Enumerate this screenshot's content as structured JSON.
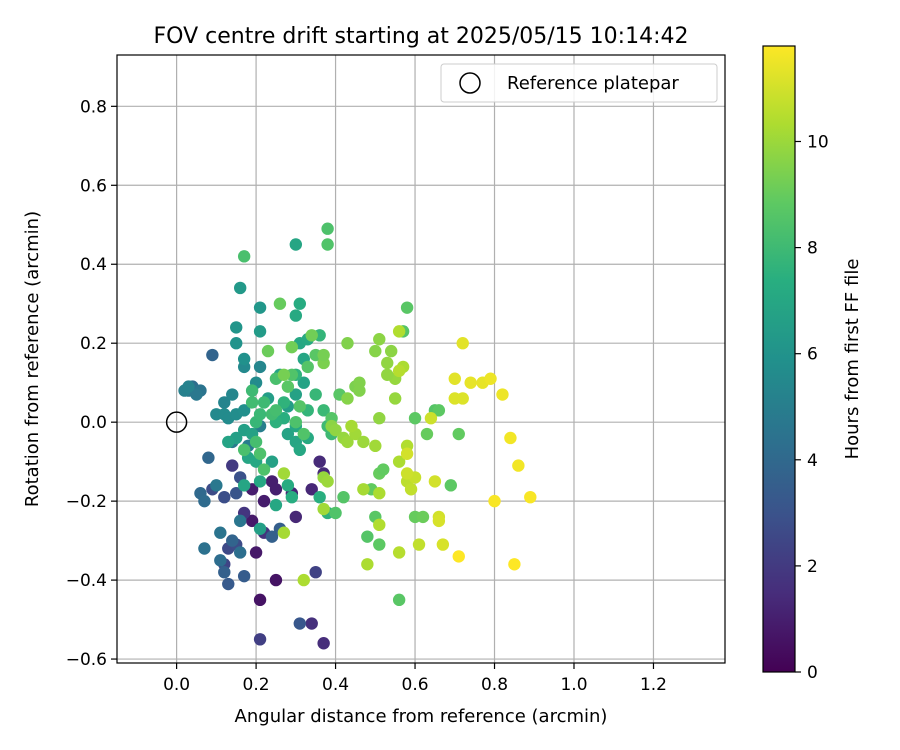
{
  "chart_data": {
    "type": "scatter",
    "title": "FOV centre drift starting at 2025/05/15 10:14:42",
    "xlabel": "Angular distance from reference (arcmin)",
    "ylabel": "Rotation from reference (arcmin)",
    "xlim": [
      -0.15,
      1.38
    ],
    "ylim": [
      -0.61,
      0.93
    ],
    "xticks": [
      0.0,
      0.2,
      0.4,
      0.6,
      0.8,
      1.0,
      1.2
    ],
    "xtick_labels": [
      "0.0",
      "0.2",
      "0.4",
      "0.6",
      "0.8",
      "1.0",
      "1.2"
    ],
    "yticks": [
      -0.6,
      -0.4,
      -0.2,
      0.0,
      0.2,
      0.4,
      0.6,
      0.8
    ],
    "ytick_labels": [
      "−0.6",
      "−0.4",
      "−0.2",
      "0.0",
      "0.2",
      "0.4",
      "0.6",
      "0.8"
    ],
    "grid": true,
    "legend": {
      "position": "top-right",
      "label": "Reference platepar"
    },
    "reference_point": {
      "x": 0.0,
      "y": 0.0
    },
    "colorbar": {
      "label": "Hours from first FF file",
      "min": 0,
      "max": 11.8,
      "ticks": [
        0,
        2,
        4,
        6,
        8,
        10
      ],
      "tick_labels": [
        "0",
        "2",
        "4",
        "6",
        "8",
        "10"
      ],
      "colormap": "viridis"
    },
    "points": [
      {
        "x": 0.21,
        "y": -0.45,
        "h": 0.6
      },
      {
        "x": 0.25,
        "y": -0.4,
        "h": 0.6
      },
      {
        "x": 0.2,
        "y": -0.33,
        "h": 0.8
      },
      {
        "x": 0.19,
        "y": -0.25,
        "h": 0.8
      },
      {
        "x": 0.22,
        "y": -0.2,
        "h": 0.9
      },
      {
        "x": 0.19,
        "y": -0.17,
        "h": 0.9
      },
      {
        "x": 0.24,
        "y": -0.15,
        "h": 1.0
      },
      {
        "x": 0.25,
        "y": -0.17,
        "h": 1.0
      },
      {
        "x": 0.29,
        "y": -0.18,
        "h": 1.2
      },
      {
        "x": 0.34,
        "y": -0.17,
        "h": 1.3
      },
      {
        "x": 0.3,
        "y": -0.24,
        "h": 1.3
      },
      {
        "x": 0.36,
        "y": -0.1,
        "h": 1.4
      },
      {
        "x": 0.37,
        "y": -0.13,
        "h": 1.4
      },
      {
        "x": 0.37,
        "y": -0.56,
        "h": 1.5
      },
      {
        "x": 0.34,
        "y": -0.51,
        "h": 1.6
      },
      {
        "x": 0.22,
        "y": -0.28,
        "h": 1.7
      },
      {
        "x": 0.17,
        "y": -0.23,
        "h": 1.8
      },
      {
        "x": 0.14,
        "y": -0.11,
        "h": 2.0
      },
      {
        "x": 0.21,
        "y": -0.55,
        "h": 2.2
      },
      {
        "x": 0.35,
        "y": -0.38,
        "h": 2.3
      },
      {
        "x": 0.12,
        "y": -0.36,
        "h": 2.4
      },
      {
        "x": 0.13,
        "y": -0.32,
        "h": 2.6
      },
      {
        "x": 0.15,
        "y": -0.31,
        "h": 2.7
      },
      {
        "x": 0.09,
        "y": -0.17,
        "h": 2.7
      },
      {
        "x": 0.12,
        "y": -0.19,
        "h": 2.8
      },
      {
        "x": 0.16,
        "y": -0.14,
        "h": 2.9
      },
      {
        "x": 0.15,
        "y": -0.18,
        "h": 3.1
      },
      {
        "x": 0.31,
        "y": -0.51,
        "h": 3.2
      },
      {
        "x": 0.13,
        "y": -0.41,
        "h": 3.3
      },
      {
        "x": 0.17,
        "y": -0.39,
        "h": 3.4
      },
      {
        "x": 0.26,
        "y": -0.27,
        "h": 3.5
      },
      {
        "x": 0.24,
        "y": -0.29,
        "h": 3.6
      },
      {
        "x": 0.12,
        "y": -0.38,
        "h": 3.6
      },
      {
        "x": 0.14,
        "y": -0.3,
        "h": 3.8
      },
      {
        "x": 0.09,
        "y": 0.17,
        "h": 3.8
      },
      {
        "x": 0.08,
        "y": -0.09,
        "h": 3.9
      },
      {
        "x": 0.06,
        "y": -0.18,
        "h": 4.0
      },
      {
        "x": 0.07,
        "y": -0.2,
        "h": 4.1
      },
      {
        "x": 0.11,
        "y": -0.35,
        "h": 4.2
      },
      {
        "x": 0.16,
        "y": -0.33,
        "h": 4.3
      },
      {
        "x": 0.07,
        "y": -0.32,
        "h": 4.4
      },
      {
        "x": 0.11,
        "y": -0.28,
        "h": 4.5
      },
      {
        "x": 0.16,
        "y": -0.25,
        "h": 4.6
      },
      {
        "x": 0.1,
        "y": -0.16,
        "h": 4.7
      },
      {
        "x": 0.14,
        "y": -0.05,
        "h": 4.8
      },
      {
        "x": 0.18,
        "y": -0.06,
        "h": 4.9
      },
      {
        "x": 0.21,
        "y": -0.01,
        "h": 5.0
      },
      {
        "x": 0.04,
        "y": 0.09,
        "h": 4.2
      },
      {
        "x": 0.03,
        "y": 0.08,
        "h": 4.6
      },
      {
        "x": 0.06,
        "y": 0.08,
        "h": 4.5
      },
      {
        "x": 0.05,
        "y": 0.07,
        "h": 4.7
      },
      {
        "x": 0.02,
        "y": 0.08,
        "h": 5.1
      },
      {
        "x": 0.03,
        "y": 0.09,
        "h": 5.2
      },
      {
        "x": 0.12,
        "y": 0.05,
        "h": 5.3
      },
      {
        "x": 0.14,
        "y": 0.07,
        "h": 5.4
      },
      {
        "x": 0.1,
        "y": 0.02,
        "h": 5.5
      },
      {
        "x": 0.12,
        "y": 0.02,
        "h": 5.6
      },
      {
        "x": 0.13,
        "y": 0.01,
        "h": 5.6
      },
      {
        "x": 0.15,
        "y": 0.02,
        "h": 5.7
      },
      {
        "x": 0.17,
        "y": 0.03,
        "h": 5.8
      },
      {
        "x": 0.17,
        "y": 0.14,
        "h": 5.5
      },
      {
        "x": 0.2,
        "y": 0.1,
        "h": 5.6
      },
      {
        "x": 0.21,
        "y": 0.14,
        "h": 5.4
      },
      {
        "x": 0.17,
        "y": 0.16,
        "h": 5.9
      },
      {
        "x": 0.15,
        "y": 0.2,
        "h": 6.0
      },
      {
        "x": 0.15,
        "y": 0.24,
        "h": 6.1
      },
      {
        "x": 0.16,
        "y": 0.34,
        "h": 6.3
      },
      {
        "x": 0.21,
        "y": 0.29,
        "h": 6.2
      },
      {
        "x": 0.21,
        "y": 0.23,
        "h": 6.4
      },
      {
        "x": 0.23,
        "y": 0.06,
        "h": 6.5
      },
      {
        "x": 0.17,
        "y": -0.02,
        "h": 6.6
      },
      {
        "x": 0.19,
        "y": -0.03,
        "h": 6.7
      },
      {
        "x": 0.15,
        "y": -0.04,
        "h": 6.6
      },
      {
        "x": 0.13,
        "y": -0.05,
        "h": 6.8
      },
      {
        "x": 0.18,
        "y": -0.09,
        "h": 6.9
      },
      {
        "x": 0.2,
        "y": -0.1,
        "h": 7.0
      },
      {
        "x": 0.17,
        "y": -0.16,
        "h": 6.9
      },
      {
        "x": 0.21,
        "y": -0.15,
        "h": 7.0
      },
      {
        "x": 0.21,
        "y": -0.27,
        "h": 6.6
      },
      {
        "x": 0.25,
        "y": -0.21,
        "h": 7.0
      },
      {
        "x": 0.24,
        "y": -0.1,
        "h": 6.7
      },
      {
        "x": 0.26,
        "y": 0.12,
        "h": 6.8
      },
      {
        "x": 0.28,
        "y": 0.04,
        "h": 6.5
      },
      {
        "x": 0.3,
        "y": 0.07,
        "h": 6.7
      },
      {
        "x": 0.32,
        "y": 0.1,
        "h": 6.8
      },
      {
        "x": 0.32,
        "y": 0.16,
        "h": 6.9
      },
      {
        "x": 0.31,
        "y": 0.2,
        "h": 7.0
      },
      {
        "x": 0.33,
        "y": 0.21,
        "h": 7.1
      },
      {
        "x": 0.3,
        "y": 0.27,
        "h": 7.1
      },
      {
        "x": 0.31,
        "y": 0.3,
        "h": 7.2
      },
      {
        "x": 0.3,
        "y": 0.45,
        "h": 6.9
      },
      {
        "x": 0.28,
        "y": -0.03,
        "h": 6.8
      },
      {
        "x": 0.3,
        "y": -0.05,
        "h": 6.9
      },
      {
        "x": 0.3,
        "y": -0.01,
        "h": 7.0
      },
      {
        "x": 0.33,
        "y": -0.04,
        "h": 7.1
      },
      {
        "x": 0.31,
        "y": -0.07,
        "h": 7.0
      },
      {
        "x": 0.28,
        "y": -0.16,
        "h": 7.2
      },
      {
        "x": 0.29,
        "y": -0.19,
        "h": 7.3
      },
      {
        "x": 0.36,
        "y": -0.19,
        "h": 7.4
      },
      {
        "x": 0.38,
        "y": -0.23,
        "h": 7.5
      },
      {
        "x": 0.27,
        "y": 0.01,
        "h": 7.4
      },
      {
        "x": 0.25,
        "y": 0.0,
        "h": 7.5
      },
      {
        "x": 0.27,
        "y": 0.05,
        "h": 7.6
      },
      {
        "x": 0.3,
        "y": 0.12,
        "h": 7.6
      },
      {
        "x": 0.33,
        "y": 0.03,
        "h": 7.7
      },
      {
        "x": 0.35,
        "y": 0.07,
        "h": 7.8
      },
      {
        "x": 0.36,
        "y": 0.22,
        "h": 7.7
      },
      {
        "x": 0.37,
        "y": 0.03,
        "h": 7.9
      },
      {
        "x": 0.38,
        "y": -0.01,
        "h": 8.0
      },
      {
        "x": 0.39,
        "y": -0.03,
        "h": 8.0
      },
      {
        "x": 0.2,
        "y": 0.0,
        "h": 7.8
      },
      {
        "x": 0.21,
        "y": 0.02,
        "h": 7.9
      },
      {
        "x": 0.22,
        "y": 0.05,
        "h": 8.0
      },
      {
        "x": 0.24,
        "y": 0.02,
        "h": 8.1
      },
      {
        "x": 0.25,
        "y": 0.03,
        "h": 8.2
      },
      {
        "x": 0.19,
        "y": 0.08,
        "h": 8.0
      },
      {
        "x": 0.19,
        "y": 0.05,
        "h": 8.1
      },
      {
        "x": 0.2,
        "y": -0.05,
        "h": 8.2
      },
      {
        "x": 0.17,
        "y": -0.07,
        "h": 8.3
      },
      {
        "x": 0.21,
        "y": -0.08,
        "h": 8.4
      },
      {
        "x": 0.22,
        "y": -0.12,
        "h": 8.4
      },
      {
        "x": 0.25,
        "y": 0.11,
        "h": 8.3
      },
      {
        "x": 0.29,
        "y": 0.12,
        "h": 8.5
      },
      {
        "x": 0.3,
        "y": 0.0,
        "h": 8.4
      },
      {
        "x": 0.31,
        "y": 0.04,
        "h": 8.6
      },
      {
        "x": 0.28,
        "y": 0.09,
        "h": 8.7
      },
      {
        "x": 0.32,
        "y": -0.03,
        "h": 8.5
      },
      {
        "x": 0.33,
        "y": 0.14,
        "h": 8.6
      },
      {
        "x": 0.17,
        "y": 0.42,
        "h": 8.3
      },
      {
        "x": 0.38,
        "y": 0.49,
        "h": 8.4
      },
      {
        "x": 0.38,
        "y": 0.45,
        "h": 8.5
      },
      {
        "x": 0.35,
        "y": 0.17,
        "h": 8.7
      },
      {
        "x": 0.39,
        "y": 0.01,
        "h": 8.6
      },
      {
        "x": 0.41,
        "y": 0.07,
        "h": 8.7
      },
      {
        "x": 0.4,
        "y": -0.23,
        "h": 8.5
      },
      {
        "x": 0.42,
        "y": -0.19,
        "h": 8.6
      },
      {
        "x": 0.48,
        "y": -0.29,
        "h": 8.6
      },
      {
        "x": 0.5,
        "y": -0.24,
        "h": 8.7
      },
      {
        "x": 0.51,
        "y": -0.31,
        "h": 8.8
      },
      {
        "x": 0.49,
        "y": -0.17,
        "h": 8.9
      },
      {
        "x": 0.51,
        "y": -0.13,
        "h": 9.0
      },
      {
        "x": 0.52,
        "y": -0.12,
        "h": 8.9
      },
      {
        "x": 0.56,
        "y": -0.45,
        "h": 8.7
      },
      {
        "x": 0.6,
        "y": 0.01,
        "h": 8.8
      },
      {
        "x": 0.58,
        "y": 0.29,
        "h": 8.7
      },
      {
        "x": 0.57,
        "y": 0.23,
        "h": 8.6
      },
      {
        "x": 0.65,
        "y": 0.03,
        "h": 8.6
      },
      {
        "x": 0.66,
        "y": 0.03,
        "h": 8.8
      },
      {
        "x": 0.63,
        "y": -0.03,
        "h": 9.0
      },
      {
        "x": 0.69,
        "y": -0.16,
        "h": 8.8
      },
      {
        "x": 0.71,
        "y": -0.03,
        "h": 8.9
      },
      {
        "x": 0.6,
        "y": -0.24,
        "h": 9.0
      },
      {
        "x": 0.62,
        "y": -0.24,
        "h": 9.1
      },
      {
        "x": 0.26,
        "y": 0.3,
        "h": 9.0
      },
      {
        "x": 0.23,
        "y": 0.18,
        "h": 9.1
      },
      {
        "x": 0.29,
        "y": 0.19,
        "h": 9.2
      },
      {
        "x": 0.27,
        "y": 0.12,
        "h": 9.3
      },
      {
        "x": 0.34,
        "y": 0.22,
        "h": 9.2
      },
      {
        "x": 0.37,
        "y": 0.15,
        "h": 9.4
      },
      {
        "x": 0.37,
        "y": 0.17,
        "h": 9.3
      },
      {
        "x": 0.43,
        "y": 0.2,
        "h": 9.5
      },
      {
        "x": 0.45,
        "y": 0.09,
        "h": 9.4
      },
      {
        "x": 0.46,
        "y": 0.1,
        "h": 9.5
      },
      {
        "x": 0.43,
        "y": 0.06,
        "h": 9.6
      },
      {
        "x": 0.46,
        "y": 0.08,
        "h": 9.5
      },
      {
        "x": 0.5,
        "y": 0.18,
        "h": 9.6
      },
      {
        "x": 0.51,
        "y": 0.21,
        "h": 9.7
      },
      {
        "x": 0.53,
        "y": 0.15,
        "h": 9.8
      },
      {
        "x": 0.54,
        "y": 0.18,
        "h": 9.7
      },
      {
        "x": 0.55,
        "y": 0.11,
        "h": 9.9
      },
      {
        "x": 0.53,
        "y": 0.12,
        "h": 9.8
      },
      {
        "x": 0.55,
        "y": 0.06,
        "h": 9.9
      },
      {
        "x": 0.51,
        "y": 0.01,
        "h": 9.8
      },
      {
        "x": 0.39,
        "y": -0.01,
        "h": 9.7
      },
      {
        "x": 0.4,
        "y": -0.02,
        "h": 9.8
      },
      {
        "x": 0.42,
        "y": -0.04,
        "h": 9.9
      },
      {
        "x": 0.43,
        "y": -0.05,
        "h": 10.0
      },
      {
        "x": 0.45,
        "y": -0.03,
        "h": 10.1
      },
      {
        "x": 0.47,
        "y": -0.05,
        "h": 10.0
      },
      {
        "x": 0.5,
        "y": -0.06,
        "h": 10.1
      },
      {
        "x": 0.44,
        "y": -0.01,
        "h": 10.2
      },
      {
        "x": 0.37,
        "y": -0.14,
        "h": 9.9
      },
      {
        "x": 0.38,
        "y": -0.15,
        "h": 10.0
      },
      {
        "x": 0.37,
        "y": -0.22,
        "h": 10.1
      },
      {
        "x": 0.27,
        "y": -0.13,
        "h": 10.1
      },
      {
        "x": 0.27,
        "y": -0.28,
        "h": 10.2
      },
      {
        "x": 0.32,
        "y": -0.4,
        "h": 10.3
      },
      {
        "x": 0.47,
        "y": -0.17,
        "h": 10.2
      },
      {
        "x": 0.48,
        "y": -0.36,
        "h": 10.3
      },
      {
        "x": 0.51,
        "y": -0.26,
        "h": 10.4
      },
      {
        "x": 0.51,
        "y": -0.18,
        "h": 10.3
      },
      {
        "x": 0.56,
        "y": -0.1,
        "h": 10.3
      },
      {
        "x": 0.56,
        "y": -0.33,
        "h": 10.5
      },
      {
        "x": 0.58,
        "y": -0.06,
        "h": 10.4
      },
      {
        "x": 0.57,
        "y": 0.14,
        "h": 10.3
      },
      {
        "x": 0.56,
        "y": 0.13,
        "h": 10.5
      },
      {
        "x": 0.56,
        "y": 0.23,
        "h": 10.4
      },
      {
        "x": 0.58,
        "y": -0.15,
        "h": 10.6
      },
      {
        "x": 0.59,
        "y": -0.17,
        "h": 10.7
      },
      {
        "x": 0.6,
        "y": -0.14,
        "h": 10.8
      },
      {
        "x": 0.61,
        "y": -0.31,
        "h": 10.7
      },
      {
        "x": 0.58,
        "y": -0.13,
        "h": 10.9
      },
      {
        "x": 0.58,
        "y": -0.08,
        "h": 11.0
      },
      {
        "x": 0.64,
        "y": 0.01,
        "h": 10.9
      },
      {
        "x": 0.66,
        "y": -0.24,
        "h": 11.0
      },
      {
        "x": 0.66,
        "y": -0.25,
        "h": 11.1
      },
      {
        "x": 0.65,
        "y": -0.15,
        "h": 11.0
      },
      {
        "x": 0.67,
        "y": -0.31,
        "h": 11.1
      },
      {
        "x": 0.7,
        "y": 0.06,
        "h": 11.2
      },
      {
        "x": 0.72,
        "y": 0.06,
        "h": 11.2
      },
      {
        "x": 0.7,
        "y": 0.11,
        "h": 11.3
      },
      {
        "x": 0.72,
        "y": 0.2,
        "h": 11.3
      },
      {
        "x": 0.74,
        "y": 0.1,
        "h": 11.4
      },
      {
        "x": 0.77,
        "y": 0.1,
        "h": 11.4
      },
      {
        "x": 0.79,
        "y": 0.11,
        "h": 11.5
      },
      {
        "x": 0.82,
        "y": 0.07,
        "h": 11.5
      },
      {
        "x": 0.84,
        "y": -0.04,
        "h": 11.6
      },
      {
        "x": 0.86,
        "y": -0.11,
        "h": 11.6
      },
      {
        "x": 0.89,
        "y": -0.19,
        "h": 11.7
      },
      {
        "x": 0.8,
        "y": -0.2,
        "h": 11.7
      },
      {
        "x": 0.85,
        "y": -0.36,
        "h": 11.8
      },
      {
        "x": 0.71,
        "y": -0.34,
        "h": 11.8
      }
    ]
  }
}
